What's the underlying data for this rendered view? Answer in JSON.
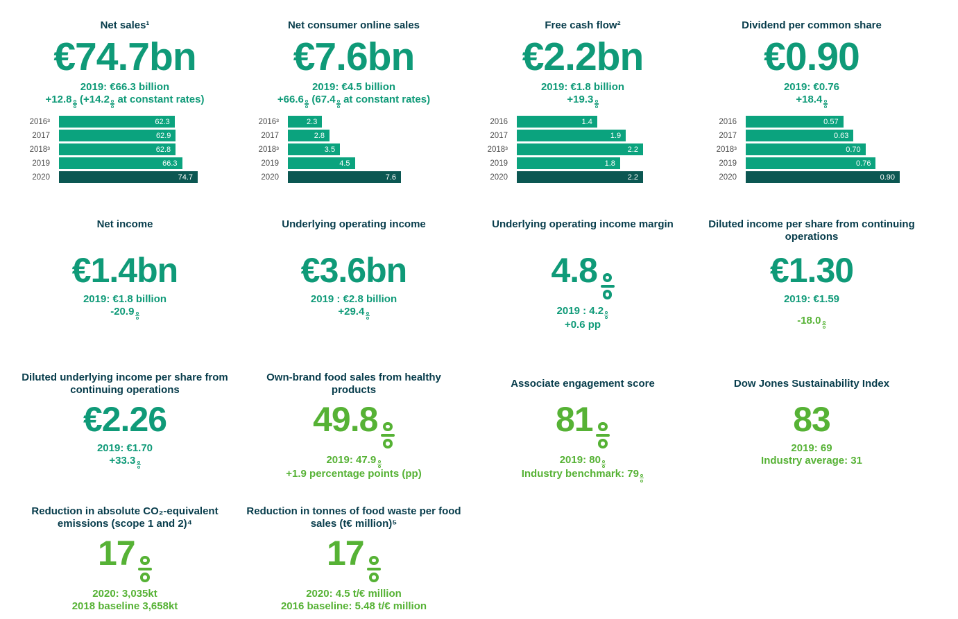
{
  "colors": {
    "title_text": "#073c4b",
    "teal_text": "#0f9a78",
    "green_text": "#56b235",
    "bar_fill": "#0ba37e",
    "bar_fill_2020": "#0b5752",
    "bar_value_text": "#ffffff",
    "year_label_text": "#4d4d4d",
    "background": "#ffffff"
  },
  "chart_data": [
    {
      "type": "bar",
      "title": "Net sales (€ billion)",
      "orientation": "horizontal",
      "categories": [
        "2016³",
        "2017",
        "2018³",
        "2019",
        "2020"
      ],
      "values": [
        62.3,
        62.9,
        62.8,
        66.3,
        74.7
      ],
      "labels": [
        "62.3",
        "62.9",
        "62.8",
        "66.3",
        "74.7"
      ],
      "max": 74.7,
      "highlight_category": "2020",
      "grid": false,
      "legend": false
    },
    {
      "type": "bar",
      "title": "Net consumer online sales (€ billion)",
      "orientation": "horizontal",
      "categories": [
        "2016³",
        "2017",
        "2018³",
        "2019",
        "2020"
      ],
      "values": [
        2.3,
        2.8,
        3.5,
        4.5,
        7.6
      ],
      "labels": [
        "2.3",
        "2.8",
        "3.5",
        "4.5",
        "7.6"
      ],
      "max": 7.6,
      "highlight_category": "2020",
      "grid": false,
      "legend": false
    },
    {
      "type": "bar",
      "title": "Free cash flow (€ billion)",
      "orientation": "horizontal",
      "categories": [
        "2016",
        "2017",
        "2018³",
        "2019",
        "2020"
      ],
      "values": [
        1.4,
        1.9,
        2.2,
        1.8,
        2.2
      ],
      "labels": [
        "1.4",
        "1.9",
        "2.2",
        "1.8",
        "2.2"
      ],
      "max": 2.2,
      "highlight_category": "2020",
      "grid": false,
      "legend": false
    },
    {
      "type": "bar",
      "title": "Dividend per common share (€)",
      "orientation": "horizontal",
      "categories": [
        "2016",
        "2017",
        "2018³",
        "2019",
        "2020"
      ],
      "values": [
        0.57,
        0.63,
        0.7,
        0.76,
        0.9
      ],
      "labels": [
        "0.57",
        "0.63",
        "0.70",
        "0.76",
        "0.90"
      ],
      "max": 0.9,
      "highlight_category": "2020",
      "grid": false,
      "legend": false
    }
  ],
  "cards": [
    {
      "title": "Net sales¹",
      "value": "€74.7bn",
      "sub1": "2019: €66.3 billion",
      "sub2": "+12.8% (+14.2% at constant rates)"
    },
    {
      "title": "Net consumer online sales",
      "value": "€7.6bn",
      "sub1": "2019: €4.5 billion",
      "sub2": "+66.6% (67.4% at constant rates)"
    },
    {
      "title": "Free cash flow²",
      "value": "€2.2bn",
      "sub1": "2019: €1.8 billion",
      "sub2": "+19.3%"
    },
    {
      "title": "Dividend per common share",
      "value": "€0.90",
      "sub1": "2019: €0.76",
      "sub2": "+18.4%"
    },
    {
      "title": "Net income",
      "value": "€1.4bn",
      "sub1": "2019: €1.8 billion",
      "sub2": "-20.9%"
    },
    {
      "title": "Underlying operating income",
      "value": "€3.6bn",
      "sub1": "2019 : €2.8 billion",
      "sub2": "+29.4%"
    },
    {
      "title": "Underlying operating income margin",
      "value": "4.8%",
      "sub1": "2019 : 4.2%",
      "sub2": "+0.6 pp"
    },
    {
      "title": "Diluted income per share from continuing operations",
      "value": "€1.30",
      "sub1": "2019: €1.59",
      "sub2": "-18.0%"
    },
    {
      "title": "Diluted underlying income per share from continuing operations",
      "value": "€2.26",
      "sub1": "2019: €1.70",
      "sub2": "+33.3%"
    },
    {
      "title": "Own-brand food sales from healthy products",
      "value": "49.8%",
      "sub1": "2019: 47.9%",
      "sub2": "+1.9 percentage points (pp)"
    },
    {
      "title": "Associate engagement score",
      "value": "81%",
      "sub1": "2019: 80%",
      "sub2": "Industry benchmark: 79%"
    },
    {
      "title": "Dow Jones Sustainability Index",
      "value": "83",
      "sub1": "2019: 69",
      "sub2": "Industry average: 31"
    },
    {
      "title": "Reduction in absolute CO₂-equivalent emissions (scope 1 and 2)⁴",
      "value": "17%",
      "sub1": "2020: 3,035kt",
      "sub2": "2018 baseline 3,658kt"
    },
    {
      "title": "Reduction in tonnes of food waste per food sales (t€ million)⁵",
      "value": "17%",
      "sub1": "2020: 4.5 t/€ million",
      "sub2": "2016 baseline: 5.48 t/€ million"
    }
  ]
}
